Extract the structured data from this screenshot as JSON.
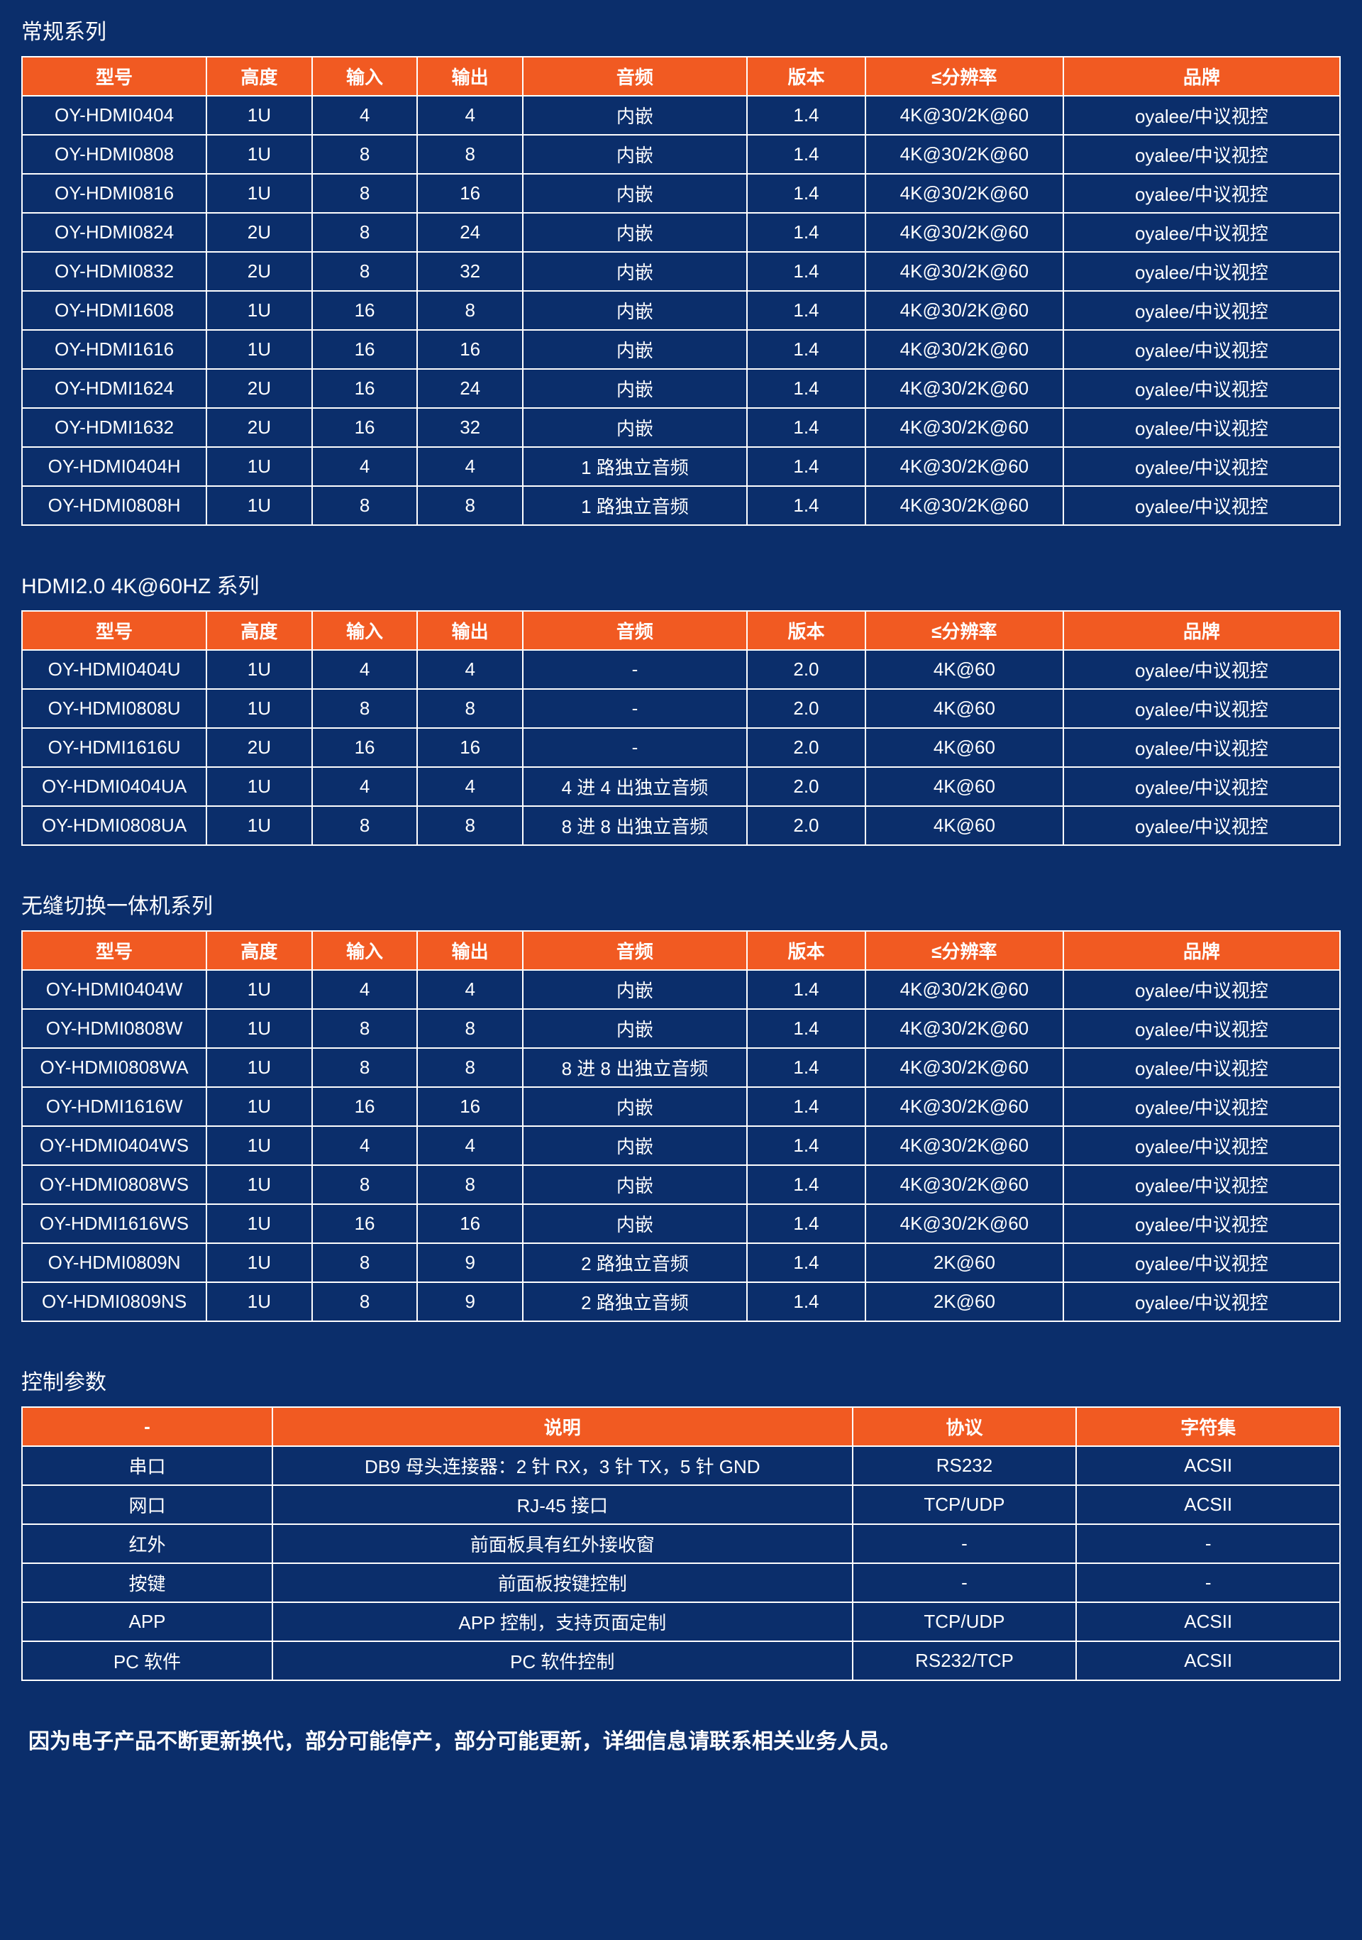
{
  "colors": {
    "background": "#0b2e6b",
    "header_bg": "#f15a22",
    "border": "#ffffff",
    "text": "#ffffff"
  },
  "sections": [
    {
      "title": "常规系列",
      "col_widths": [
        "14%",
        "8%",
        "8%",
        "8%",
        "17%",
        "9%",
        "15%",
        "21%"
      ],
      "columns": [
        "型号",
        "高度",
        "输入",
        "输出",
        "音频",
        "版本",
        "≤分辨率",
        "品牌"
      ],
      "rows": [
        [
          "OY-HDMI0404",
          "1U",
          "4",
          "4",
          "内嵌",
          "1.4",
          "4K@30/2K@60",
          "oyalee/中议视控"
        ],
        [
          "OY-HDMI0808",
          "1U",
          "8",
          "8",
          "内嵌",
          "1.4",
          "4K@30/2K@60",
          "oyalee/中议视控"
        ],
        [
          "OY-HDMI0816",
          "1U",
          "8",
          "16",
          "内嵌",
          "1.4",
          "4K@30/2K@60",
          "oyalee/中议视控"
        ],
        [
          "OY-HDMI0824",
          "2U",
          "8",
          "24",
          "内嵌",
          "1.4",
          "4K@30/2K@60",
          "oyalee/中议视控"
        ],
        [
          "OY-HDMI0832",
          "2U",
          "8",
          "32",
          "内嵌",
          "1.4",
          "4K@30/2K@60",
          "oyalee/中议视控"
        ],
        [
          "OY-HDMI1608",
          "1U",
          "16",
          "8",
          "内嵌",
          "1.4",
          "4K@30/2K@60",
          "oyalee/中议视控"
        ],
        [
          "OY-HDMI1616",
          "1U",
          "16",
          "16",
          "内嵌",
          "1.4",
          "4K@30/2K@60",
          "oyalee/中议视控"
        ],
        [
          "OY-HDMI1624",
          "2U",
          "16",
          "24",
          "内嵌",
          "1.4",
          "4K@30/2K@60",
          "oyalee/中议视控"
        ],
        [
          "OY-HDMI1632",
          "2U",
          "16",
          "32",
          "内嵌",
          "1.4",
          "4K@30/2K@60",
          "oyalee/中议视控"
        ],
        [
          "OY-HDMI0404H",
          "1U",
          "4",
          "4",
          "1 路独立音频",
          "1.4",
          "4K@30/2K@60",
          "oyalee/中议视控"
        ],
        [
          "OY-HDMI0808H",
          "1U",
          "8",
          "8",
          "1 路独立音频",
          "1.4",
          "4K@30/2K@60",
          "oyalee/中议视控"
        ]
      ]
    },
    {
      "title": "HDMI2.0 4K@60HZ 系列",
      "col_widths": [
        "14%",
        "8%",
        "8%",
        "8%",
        "17%",
        "9%",
        "15%",
        "21%"
      ],
      "columns": [
        "型号",
        "高度",
        "输入",
        "输出",
        "音频",
        "版本",
        "≤分辨率",
        "品牌"
      ],
      "rows": [
        [
          "OY-HDMI0404U",
          "1U",
          "4",
          "4",
          "-",
          "2.0",
          "4K@60",
          "oyalee/中议视控"
        ],
        [
          "OY-HDMI0808U",
          "1U",
          "8",
          "8",
          "-",
          "2.0",
          "4K@60",
          "oyalee/中议视控"
        ],
        [
          "OY-HDMI1616U",
          "2U",
          "16",
          "16",
          "-",
          "2.0",
          "4K@60",
          "oyalee/中议视控"
        ],
        [
          "OY-HDMI0404UA",
          "1U",
          "4",
          "4",
          "4 进 4 出独立音频",
          "2.0",
          "4K@60",
          "oyalee/中议视控"
        ],
        [
          "OY-HDMI0808UA",
          "1U",
          "8",
          "8",
          "8 进 8 出独立音频",
          "2.0",
          "4K@60",
          "oyalee/中议视控"
        ]
      ]
    },
    {
      "title": "无缝切换一体机系列",
      "col_widths": [
        "14%",
        "8%",
        "8%",
        "8%",
        "17%",
        "9%",
        "15%",
        "21%"
      ],
      "columns": [
        "型号",
        "高度",
        "输入",
        "输出",
        "音频",
        "版本",
        "≤分辨率",
        "品牌"
      ],
      "rows": [
        [
          "OY-HDMI0404W",
          "1U",
          "4",
          "4",
          "内嵌",
          "1.4",
          "4K@30/2K@60",
          "oyalee/中议视控"
        ],
        [
          "OY-HDMI0808W",
          "1U",
          "8",
          "8",
          "内嵌",
          "1.4",
          "4K@30/2K@60",
          "oyalee/中议视控"
        ],
        [
          "OY-HDMI0808WA",
          "1U",
          "8",
          "8",
          "8 进 8 出独立音频",
          "1.4",
          "4K@30/2K@60",
          "oyalee/中议视控"
        ],
        [
          "OY-HDMI1616W",
          "1U",
          "16",
          "16",
          "内嵌",
          "1.4",
          "4K@30/2K@60",
          "oyalee/中议视控"
        ],
        [
          "OY-HDMI0404WS",
          "1U",
          "4",
          "4",
          "内嵌",
          "1.4",
          "4K@30/2K@60",
          "oyalee/中议视控"
        ],
        [
          "OY-HDMI0808WS",
          "1U",
          "8",
          "8",
          "内嵌",
          "1.4",
          "4K@30/2K@60",
          "oyalee/中议视控"
        ],
        [
          "OY-HDMI1616WS",
          "1U",
          "16",
          "16",
          "内嵌",
          "1.4",
          "4K@30/2K@60",
          "oyalee/中议视控"
        ],
        [
          "OY-HDMI0809N",
          "1U",
          "8",
          "9",
          "2 路独立音频",
          "1.4",
          "2K@60",
          "oyalee/中议视控"
        ],
        [
          "OY-HDMI0809NS",
          "1U",
          "8",
          "9",
          "2 路独立音频",
          "1.4",
          "2K@60",
          "oyalee/中议视控"
        ]
      ]
    },
    {
      "title": "控制参数",
      "col_widths": [
        "19%",
        "44%",
        "17%",
        "20%"
      ],
      "columns": [
        "-",
        "说明",
        "协议",
        "字符集"
      ],
      "rows": [
        [
          "串口",
          "DB9 母头连接器：2 针 RX，3 针 TX，5 针 GND",
          "RS232",
          "ACSII"
        ],
        [
          "网口",
          "RJ-45 接口",
          "TCP/UDP",
          "ACSII"
        ],
        [
          "红外",
          "前面板具有红外接收窗",
          "-",
          "-"
        ],
        [
          "按键",
          "前面板按键控制",
          "-",
          "-"
        ],
        [
          "APP",
          "APP 控制，支持页面定制",
          "TCP/UDP",
          "ACSII"
        ],
        [
          "PC 软件",
          "PC 软件控制",
          "RS232/TCP",
          "ACSII"
        ]
      ]
    }
  ],
  "footnote": "因为电子产品不断更新换代，部分可能停产，部分可能更新，详细信息请联系相关业务人员。"
}
